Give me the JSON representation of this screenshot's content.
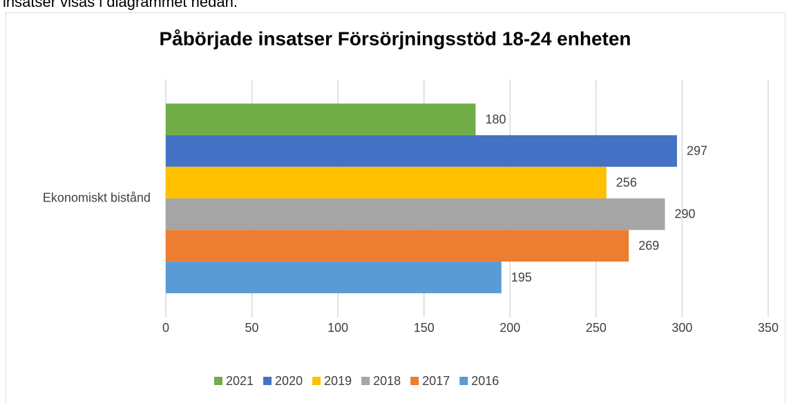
{
  "document": {
    "text": "insatser visas i diagrammet nedan."
  },
  "chart_data": {
    "type": "hbar",
    "title": "Påbörjade insatser Försörjningsstöd 18-24 enheten",
    "categories": [
      "Ekonomiskt bistånd"
    ],
    "series": [
      {
        "name": "2021",
        "color": "#70ad47",
        "values": [
          180
        ]
      },
      {
        "name": "2020",
        "color": "#4472c4",
        "values": [
          297
        ]
      },
      {
        "name": "2019",
        "color": "#ffc000",
        "values": [
          256
        ]
      },
      {
        "name": "2018",
        "color": "#a5a5a5",
        "values": [
          290
        ]
      },
      {
        "name": "2017",
        "color": "#ed7d31",
        "values": [
          269
        ]
      },
      {
        "name": "2016",
        "color": "#5b9bd5",
        "values": [
          195
        ]
      }
    ],
    "xlim": [
      0,
      350
    ],
    "xticks": [
      0,
      50,
      100,
      150,
      200,
      250,
      300,
      350
    ],
    "grid": true,
    "legend": "bottom"
  }
}
